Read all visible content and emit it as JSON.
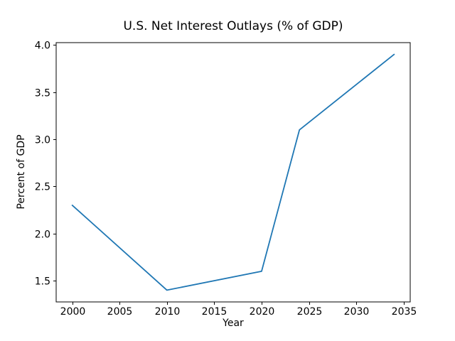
{
  "chart_data": {
    "type": "line",
    "title": "U.S. Net Interest Outlays (% of GDP)",
    "xlabel": "Year",
    "ylabel": "Percent of GDP",
    "x": [
      2000,
      2010,
      2020,
      2024,
      2034
    ],
    "y": [
      2.3,
      1.4,
      1.6,
      3.1,
      3.9
    ],
    "xticks": [
      "2000",
      "2005",
      "2010",
      "2015",
      "2020",
      "2025",
      "2030",
      "2035"
    ],
    "yticks": [
      "1.5",
      "2.0",
      "2.5",
      "3.0",
      "3.5",
      "4.0"
    ],
    "xlim": [
      1998.3,
      2035.7
    ],
    "ylim": [
      1.275,
      4.025
    ],
    "line_color": "#1f77b4",
    "axis_color": "#000000",
    "background_color": "#ffffff",
    "grid": false,
    "markers": false
  }
}
